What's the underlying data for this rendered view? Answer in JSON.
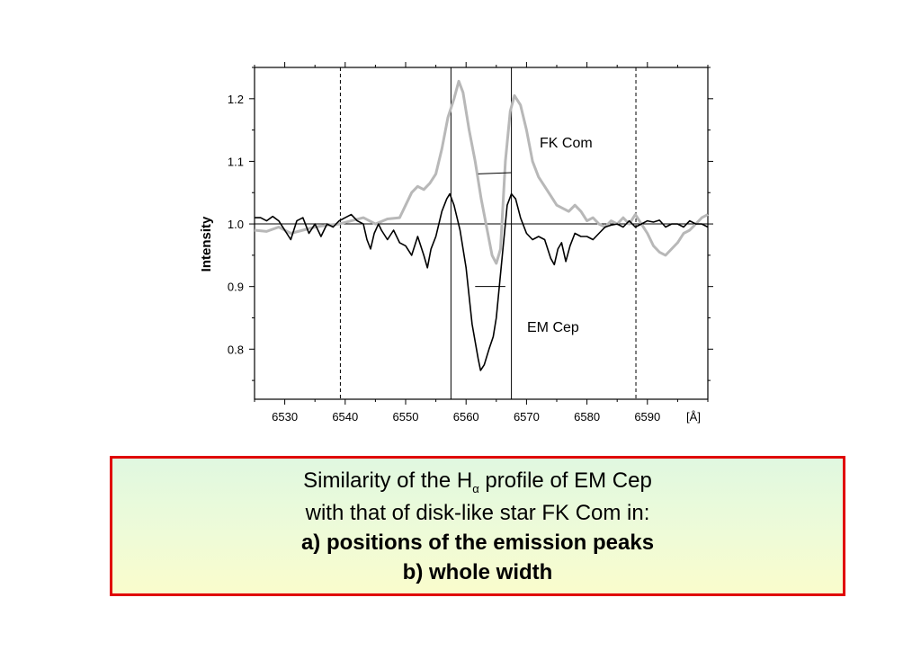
{
  "chart_data": {
    "type": "line",
    "xlabel": "[Å]",
    "ylabel": "Intensity",
    "xlim": [
      6525,
      6600
    ],
    "ylim": [
      0.72,
      1.25
    ],
    "x_ticks": [
      6530,
      6540,
      6550,
      6560,
      6570,
      6580,
      6590
    ],
    "y_ticks": [
      0.8,
      0.9,
      1.0,
      1.1,
      1.2
    ],
    "grid": false,
    "reference_line_y": 1.0,
    "vertical_lines_solid": [
      6557.5,
      6567.5
    ],
    "vertical_lines_dashed": [
      6539.2,
      6588.1
    ],
    "series": [
      {
        "name": "FK Com",
        "color": "#b8b8b8",
        "points": [
          [
            6525,
            0.99
          ],
          [
            6527,
            0.988
          ],
          [
            6529,
            0.995
          ],
          [
            6531,
            0.985
          ],
          [
            6533,
            0.99
          ],
          [
            6535,
            0.995
          ],
          [
            6537,
            0.998
          ],
          [
            6539,
            1.0
          ],
          [
            6541,
            1.005
          ],
          [
            6543,
            1.01
          ],
          [
            6545,
            1.0
          ],
          [
            6547,
            1.008
          ],
          [
            6549,
            1.01
          ],
          [
            6550,
            1.03
          ],
          [
            6551,
            1.05
          ],
          [
            6552,
            1.06
          ],
          [
            6553,
            1.055
          ],
          [
            6554,
            1.065
          ],
          [
            6555,
            1.08
          ],
          [
            6556,
            1.12
          ],
          [
            6557,
            1.17
          ],
          [
            6558,
            1.2
          ],
          [
            6558.8,
            1.228
          ],
          [
            6559.5,
            1.21
          ],
          [
            6560.5,
            1.15
          ],
          [
            6561.5,
            1.1
          ],
          [
            6562.5,
            1.04
          ],
          [
            6563.5,
            0.99
          ],
          [
            6564.3,
            0.95
          ],
          [
            6565,
            0.937
          ],
          [
            6565.7,
            0.96
          ],
          [
            6566.5,
            1.1
          ],
          [
            6567.3,
            1.18
          ],
          [
            6568,
            1.205
          ],
          [
            6569,
            1.19
          ],
          [
            6570,
            1.15
          ],
          [
            6571,
            1.1
          ],
          [
            6572,
            1.075
          ],
          [
            6573,
            1.06
          ],
          [
            6574,
            1.045
          ],
          [
            6575,
            1.03
          ],
          [
            6576,
            1.025
          ],
          [
            6577,
            1.02
          ],
          [
            6578,
            1.03
          ],
          [
            6579,
            1.02
          ],
          [
            6580,
            1.005
          ],
          [
            6581,
            1.01
          ],
          [
            6582,
            1.0
          ],
          [
            6583,
            0.995
          ],
          [
            6584,
            1.005
          ],
          [
            6585,
            1.0
          ],
          [
            6586,
            1.01
          ],
          [
            6587,
            1.0
          ],
          [
            6588,
            1.015
          ],
          [
            6589,
            1.0
          ],
          [
            6590,
            0.985
          ],
          [
            6591,
            0.965
          ],
          [
            6592,
            0.955
          ],
          [
            6593,
            0.95
          ],
          [
            6594,
            0.96
          ],
          [
            6595,
            0.97
          ],
          [
            6596,
            0.985
          ],
          [
            6597,
            0.99
          ],
          [
            6598,
            1.0
          ],
          [
            6599,
            1.01
          ],
          [
            6600,
            1.015
          ]
        ]
      },
      {
        "name": "EM Cep",
        "color": "#000000",
        "points": [
          [
            6525,
            1.01
          ],
          [
            6526,
            1.01
          ],
          [
            6527,
            1.005
          ],
          [
            6528,
            1.012
          ],
          [
            6529,
            1.005
          ],
          [
            6530,
            0.99
          ],
          [
            6531,
            0.975
          ],
          [
            6532,
            1.005
          ],
          [
            6533,
            1.01
          ],
          [
            6534,
            0.985
          ],
          [
            6535,
            1.0
          ],
          [
            6536,
            0.98
          ],
          [
            6537,
            1.0
          ],
          [
            6538,
            0.995
          ],
          [
            6539,
            1.005
          ],
          [
            6540,
            1.01
          ],
          [
            6541,
            1.015
          ],
          [
            6542,
            1.005
          ],
          [
            6543,
            1.0
          ],
          [
            6543.6,
            0.975
          ],
          [
            6544.2,
            0.96
          ],
          [
            6544.8,
            0.985
          ],
          [
            6545.5,
            1.0
          ],
          [
            6546,
            0.99
          ],
          [
            6547,
            0.975
          ],
          [
            6548,
            0.99
          ],
          [
            6549,
            0.97
          ],
          [
            6550,
            0.965
          ],
          [
            6551,
            0.95
          ],
          [
            6552,
            0.98
          ],
          [
            6553,
            0.95
          ],
          [
            6553.6,
            0.93
          ],
          [
            6554.2,
            0.96
          ],
          [
            6555,
            0.98
          ],
          [
            6556,
            1.02
          ],
          [
            6556.8,
            1.04
          ],
          [
            6557.3,
            1.048
          ],
          [
            6558,
            1.03
          ],
          [
            6559,
            0.99
          ],
          [
            6560,
            0.93
          ],
          [
            6561,
            0.84
          ],
          [
            6562,
            0.785
          ],
          [
            6562.4,
            0.766
          ],
          [
            6563,
            0.775
          ],
          [
            6563.8,
            0.8
          ],
          [
            6564.5,
            0.82
          ],
          [
            6565,
            0.85
          ],
          [
            6566,
            0.95
          ],
          [
            6566.8,
            1.03
          ],
          [
            6567.5,
            1.048
          ],
          [
            6568.2,
            1.04
          ],
          [
            6569,
            1.01
          ],
          [
            6570,
            0.985
          ],
          [
            6571,
            0.975
          ],
          [
            6572,
            0.98
          ],
          [
            6573,
            0.975
          ],
          [
            6574,
            0.945
          ],
          [
            6574.6,
            0.935
          ],
          [
            6575.2,
            0.96
          ],
          [
            6575.8,
            0.97
          ],
          [
            6576.5,
            0.94
          ],
          [
            6577.2,
            0.965
          ],
          [
            6578,
            0.985
          ],
          [
            6579,
            0.98
          ],
          [
            6580,
            0.98
          ],
          [
            6581,
            0.975
          ],
          [
            6582,
            0.985
          ],
          [
            6583,
            0.995
          ],
          [
            6584,
            0.998
          ],
          [
            6585,
            1.0
          ],
          [
            6586,
            0.995
          ],
          [
            6587,
            1.005
          ],
          [
            6588,
            0.995
          ],
          [
            6589,
            1.0
          ],
          [
            6590,
            1.005
          ],
          [
            6591,
            1.003
          ],
          [
            6592,
            1.006
          ],
          [
            6593,
            0.995
          ],
          [
            6594,
            1.0
          ],
          [
            6595,
            1.0
          ],
          [
            6596,
            0.995
          ],
          [
            6597,
            1.005
          ],
          [
            6598,
            1.0
          ],
          [
            6599,
            1.0
          ],
          [
            6600,
            0.995
          ]
        ]
      }
    ],
    "width_markers": [
      {
        "series": "FK Com",
        "x1": 6562,
        "x2": 6567.5,
        "y1": 1.08,
        "y2": 1.082
      },
      {
        "series": "EM Cep",
        "x1": 6561.5,
        "x2": 6566.5,
        "y1": 0.9,
        "y2": 0.9
      }
    ]
  },
  "caption": {
    "line1_pre": "Similarity of the H",
    "line1_sub": "α",
    "line1_post": " profile of EM Cep",
    "line2": "with that of disk-like star FK Com in:",
    "line3": "a) positions of the emission peaks",
    "line4": "b) whole width"
  }
}
